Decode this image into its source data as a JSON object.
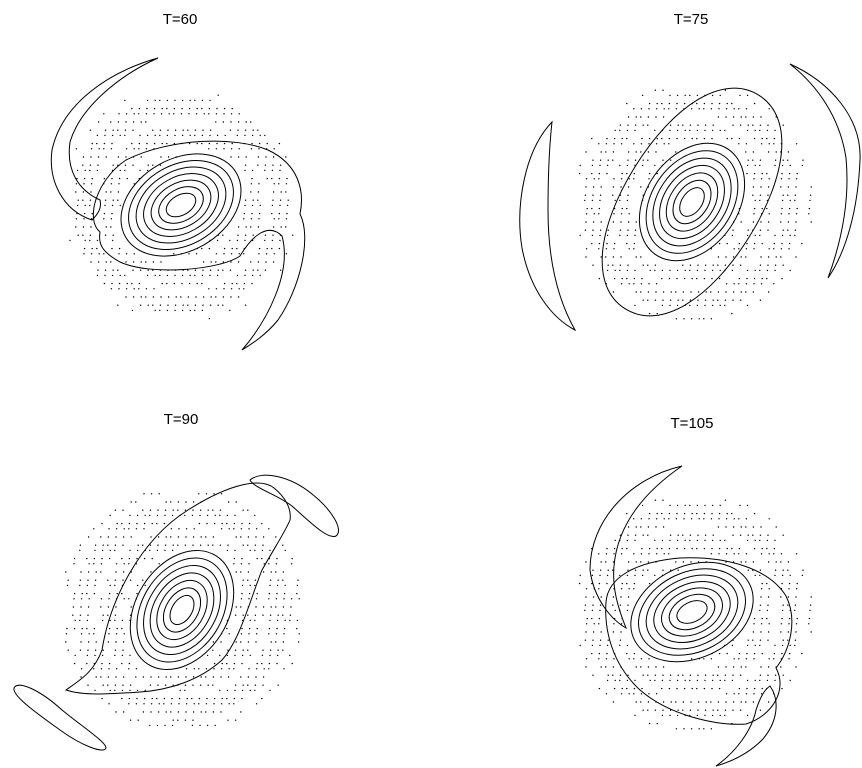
{
  "figure": {
    "panels": [
      {
        "title": "T=60",
        "rotation_deg": -30,
        "arms": "left-top / right-bottom"
      },
      {
        "title": "T=75",
        "rotation_deg": -55,
        "arms": "left / right"
      },
      {
        "title": "T=90",
        "rotation_deg": -58,
        "arms": "top-right / bottom-left"
      },
      {
        "title": "T=105",
        "rotation_deg": -25,
        "arms": "top-left / bottom-right"
      }
    ],
    "contour_count": 7,
    "colors": {
      "ink": "#000000",
      "background": "#ffffff"
    }
  }
}
